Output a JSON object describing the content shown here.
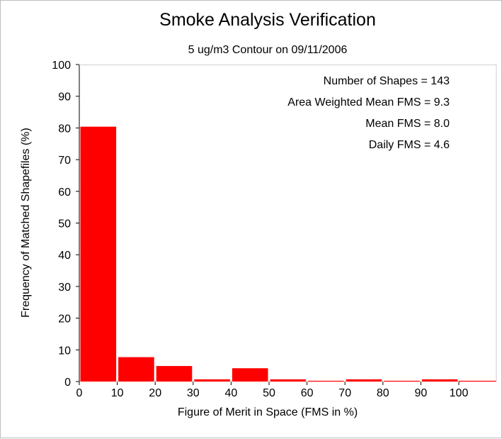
{
  "chart_data": {
    "type": "bar",
    "title": "Smoke Analysis Verification",
    "subtitle": "5 ug/m3 Contour on 09/11/2006",
    "xlabel": "Figure of Merit in Space (FMS in %)",
    "ylabel": "Frequency of Matched Shapefiles (%)",
    "xlim": [
      0,
      100
    ],
    "ylim": [
      0,
      100
    ],
    "x_ticks": [
      "0",
      "10",
      "20",
      "30",
      "40",
      "50",
      "60",
      "70",
      "80",
      "90",
      "100"
    ],
    "y_ticks": [
      "0",
      "10",
      "20",
      "30",
      "40",
      "50",
      "60",
      "70",
      "80",
      "90",
      "100"
    ],
    "bin_width": 10,
    "bins": [
      0,
      10,
      20,
      30,
      40,
      50,
      60,
      70,
      80,
      90
    ],
    "values": [
      80.4,
      7.7,
      4.9,
      0.7,
      4.2,
      0.7,
      0.0,
      0.7,
      0.0,
      0.7
    ],
    "bar_color": "#ff0000",
    "grid": false,
    "legend": "none",
    "annotations": [
      "Number of Shapes = 143",
      "Area Weighted Mean FMS = 9.3",
      "Mean FMS = 8.0",
      "Daily FMS = 4.6"
    ]
  }
}
